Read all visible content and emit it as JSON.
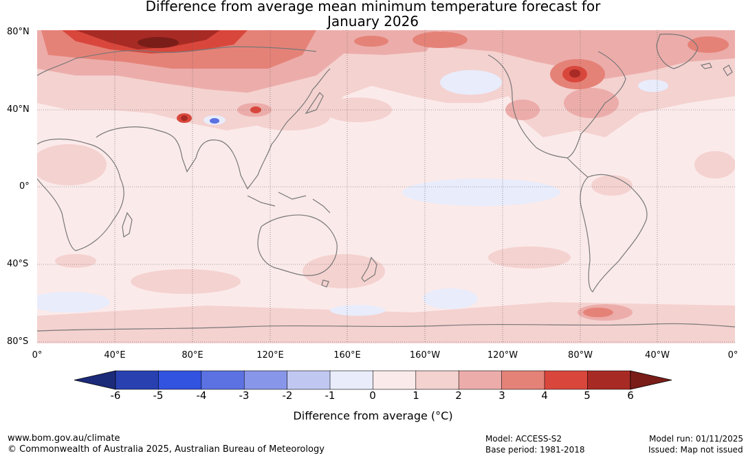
{
  "title_line1": "Difference from average mean minimum temperature forecast for",
  "title_line2": "January 2026",
  "lat_labels": [
    "80°N",
    "40°N",
    "0°",
    "40°S",
    "80°S"
  ],
  "lon_labels": [
    "0°",
    "40°E",
    "80°E",
    "120°E",
    "160°E",
    "160°W",
    "120°W",
    "80°W",
    "40°W",
    "0°"
  ],
  "colorbar": {
    "title": "Difference from average (°C)",
    "ticks": [
      "-6",
      "-5",
      "-4",
      "-3",
      "-2",
      "-1",
      "0",
      "1",
      "2",
      "3",
      "4",
      "5",
      "6"
    ],
    "colors": [
      "#1c2a7a",
      "#2840b0",
      "#3252e0",
      "#5c72e2",
      "#8896ea",
      "#c0c8f2",
      "#e8ecfb",
      "#fbeaea",
      "#f4d2d0",
      "#ecadaa",
      "#e58278",
      "#d9473c",
      "#a82a24",
      "#7a1d18"
    ]
  },
  "footer": {
    "website": "www.bom.gov.au/climate",
    "copyright": "© Commonwealth of Australia 2025, Australian Bureau of Meteorology",
    "model": "Model: ACCESS-S2",
    "base_period": "Base period: 1981-2018",
    "model_run": "Model run: 01/11/2025",
    "issued": "Issued: Map not issued"
  }
}
